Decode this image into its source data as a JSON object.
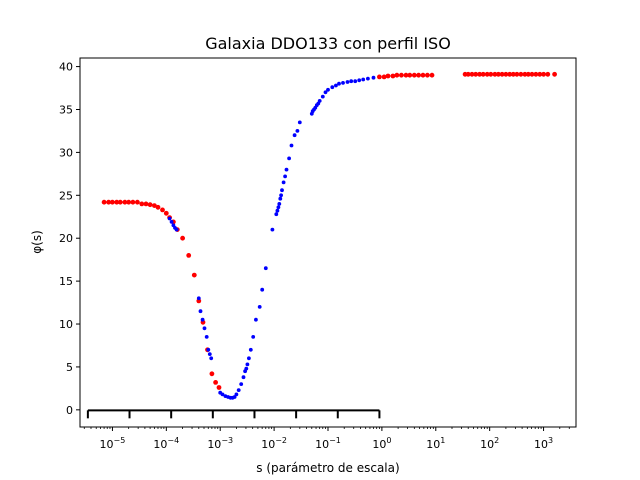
{
  "chart_data": {
    "type": "scatter",
    "title": "Galaxia DDO133 con perfil ISO",
    "xlabel": "s (parámetro de escala)",
    "ylabel": "φ(s)",
    "xscale": "log",
    "xlim": [
      2.5e-06,
      4000
    ],
    "ylim": [
      -2,
      41
    ],
    "x_ticks": [
      {
        "value": 1e-05,
        "base": "10",
        "exp": "−5"
      },
      {
        "value": 0.0001,
        "base": "10",
        "exp": "−4"
      },
      {
        "value": 0.001,
        "base": "10",
        "exp": "−3"
      },
      {
        "value": 0.01,
        "base": "10",
        "exp": "−2"
      },
      {
        "value": 0.1,
        "base": "10",
        "exp": "−1"
      },
      {
        "value": 1,
        "base": "10",
        "exp": "0"
      },
      {
        "value": 10,
        "base": "10",
        "exp": "1"
      },
      {
        "value": 100,
        "base": "10",
        "exp": "2"
      },
      {
        "value": 1000,
        "base": "10",
        "exp": "3"
      }
    ],
    "y_ticks": [
      "0",
      "5",
      "10",
      "15",
      "20",
      "25",
      "30",
      "35",
      "40"
    ],
    "bracket": {
      "xmin": 3.5e-06,
      "xmax": 0.9,
      "y": 0,
      "divisions": 7
    },
    "colors": {
      "red": "#ff0000",
      "blue": "#0000ff",
      "axes": "#000000"
    },
    "series": [
      {
        "color": "red",
        "marker_size": 2.4,
        "x": [
          7e-06,
          8.5e-06,
          1e-05,
          1.2e-05,
          1.4e-05,
          1.7e-05,
          2e-05,
          2.4e-05,
          2.9e-05,
          3.5e-05,
          4.2e-05,
          5e-05,
          6e-05,
          7e-05,
          8.5e-05,
          0.0001,
          0.000115,
          0.000135,
          0.00016,
          0.0002,
          0.00026,
          0.00033,
          0.0004,
          0.00048,
          0.00058,
          0.0007,
          0.00082,
          0.00095
        ],
        "y": [
          24.2,
          24.2,
          24.2,
          24.2,
          24.2,
          24.2,
          24.2,
          24.2,
          24.2,
          24.0,
          24.0,
          23.9,
          23.8,
          23.6,
          23.3,
          22.9,
          22.4,
          21.9,
          21.0,
          20.0,
          18.0,
          15.7,
          12.7,
          10.2,
          7.0,
          4.2,
          3.2,
          2.6
        ]
      },
      {
        "color": "blue",
        "marker_size": 1.9,
        "x": [
          0.000115,
          0.000125,
          0.000135,
          0.000145,
          0.000155,
          0.0004,
          0.00043,
          0.00047,
          0.00051,
          0.00056,
          0.0006,
          0.00064,
          0.00068,
          0.001,
          0.0011,
          0.00125,
          0.0014,
          0.00155,
          0.0017,
          0.00185,
          0.002,
          0.0022,
          0.00245,
          0.0027,
          0.0029,
          0.00305,
          0.0032,
          0.0034,
          0.0037,
          0.0041,
          0.0046,
          0.0054,
          0.006,
          0.007,
          0.0093,
          0.011,
          0.0115,
          0.012,
          0.0125,
          0.013,
          0.0135,
          0.014,
          0.015,
          0.016,
          0.017,
          0.019,
          0.021,
          0.024,
          0.027,
          0.03,
          0.05,
          0.052,
          0.055,
          0.058,
          0.062,
          0.066,
          0.07,
          0.08,
          0.09,
          0.1,
          0.12,
          0.14,
          0.16,
          0.19,
          0.23,
          0.27,
          0.32,
          0.38,
          0.45,
          0.55,
          0.7
        ],
        "y": [
          22.3,
          21.9,
          21.5,
          21.2,
          21.0,
          13.0,
          11.5,
          10.5,
          9.5,
          8.5,
          7.0,
          6.5,
          6.0,
          2.0,
          1.8,
          1.6,
          1.5,
          1.4,
          1.4,
          1.5,
          1.8,
          2.3,
          3.0,
          3.8,
          4.5,
          4.8,
          5.3,
          6.0,
          7.0,
          8.5,
          10.5,
          12.0,
          14.0,
          16.5,
          21.0,
          22.8,
          23.2,
          23.6,
          24.0,
          24.6,
          25.0,
          25.6,
          26.5,
          27.2,
          28.0,
          29.3,
          30.8,
          32.0,
          32.5,
          33.5,
          34.5,
          34.8,
          35.0,
          35.2,
          35.5,
          35.7,
          36.0,
          36.5,
          37.0,
          37.3,
          37.6,
          37.8,
          38.0,
          38.1,
          38.2,
          38.3,
          38.3,
          38.4,
          38.5,
          38.6,
          38.7
        ]
      },
      {
        "color": "red",
        "marker_size": 2.4,
        "x": [
          0.9,
          1.1,
          1.3,
          1.6,
          1.9,
          2.3,
          2.8,
          3.3,
          4.0,
          4.8,
          5.8,
          7.0,
          8.5,
          35,
          40,
          47,
          55,
          65,
          76,
          90,
          105,
          125,
          145,
          170,
          200,
          235,
          275,
          320,
          380,
          450,
          520,
          610,
          720,
          850,
          1000,
          1200,
          1600
        ],
        "y": [
          38.8,
          38.8,
          38.9,
          38.9,
          39.0,
          39.0,
          39.0,
          39.0,
          39.0,
          39.0,
          39.0,
          39.0,
          39.0,
          39.1,
          39.1,
          39.1,
          39.1,
          39.1,
          39.1,
          39.1,
          39.1,
          39.1,
          39.1,
          39.1,
          39.1,
          39.1,
          39.1,
          39.1,
          39.1,
          39.1,
          39.1,
          39.1,
          39.1,
          39.1,
          39.1,
          39.1,
          39.1
        ]
      }
    ]
  }
}
